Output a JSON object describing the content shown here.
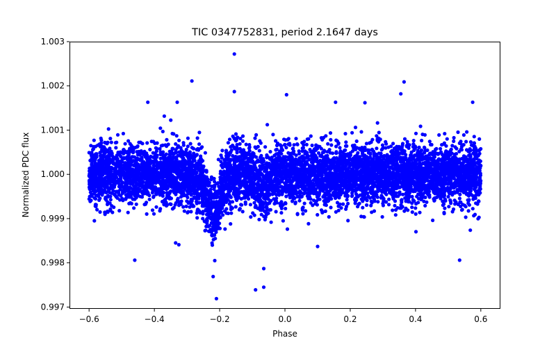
{
  "chart_data": {
    "type": "scatter",
    "title": "TIC 0347752831, period 2.1647 days",
    "xlabel": "Phase",
    "ylabel": "Normalized PDC flux",
    "xlim": [
      -0.66,
      0.66
    ],
    "ylim": [
      0.99696,
      1.003
    ],
    "xticks": [
      -0.6,
      -0.4,
      -0.2,
      0.0,
      0.2,
      0.4,
      0.6
    ],
    "xtick_labels": [
      "−0.6",
      "−0.4",
      "−0.2",
      "0.0",
      "0.2",
      "0.4",
      "0.6"
    ],
    "yticks": [
      0.997,
      0.998,
      0.999,
      1.0,
      1.001,
      1.002,
      1.003
    ],
    "ytick_labels": [
      "0.997",
      "0.998",
      "0.999",
      "1.000",
      "1.001",
      "1.002",
      "1.003"
    ],
    "grid": false,
    "marker_color": "#0000ff",
    "series": [
      {
        "name": "PDC flux",
        "phase_range": [
          -0.6,
          0.6
        ],
        "baseline": 1.0,
        "scatter_sigma": 0.00035,
        "transit": {
          "center": -0.22,
          "width": 0.028,
          "depth": 0.0009
        },
        "secondary_feature": {
          "center": -0.07,
          "width": 0.02,
          "depth": 0.0004
        },
        "outliers": [
          {
            "x": -0.155,
            "y": 1.00272
          },
          {
            "x": -0.285,
            "y": 1.00211
          },
          {
            "x": 0.365,
            "y": 1.00209
          },
          {
            "x": 0.005,
            "y": 1.0018
          },
          {
            "x": 0.355,
            "y": 1.00182
          },
          {
            "x": -0.155,
            "y": 1.00187
          },
          {
            "x": -0.21,
            "y": 0.99719
          },
          {
            "x": -0.22,
            "y": 0.99769
          },
          {
            "x": -0.09,
            "y": 0.99739
          },
          {
            "x": -0.065,
            "y": 0.99745
          },
          {
            "x": -0.065,
            "y": 0.99787
          },
          {
            "x": -0.46,
            "y": 0.99806
          },
          {
            "x": 0.535,
            "y": 0.99806
          },
          {
            "x": -0.215,
            "y": 0.99805
          },
          {
            "x": -0.335,
            "y": 0.99845
          },
          {
            "x": -0.325,
            "y": 0.99841
          },
          {
            "x": 0.1,
            "y": 0.99837
          },
          {
            "x": 0.575,
            "y": 1.00163
          },
          {
            "x": -0.42,
            "y": 1.00163
          },
          {
            "x": -0.33,
            "y": 1.00163
          },
          {
            "x": 0.155,
            "y": 1.00163
          },
          {
            "x": 0.245,
            "y": 1.00162
          }
        ]
      }
    ]
  }
}
